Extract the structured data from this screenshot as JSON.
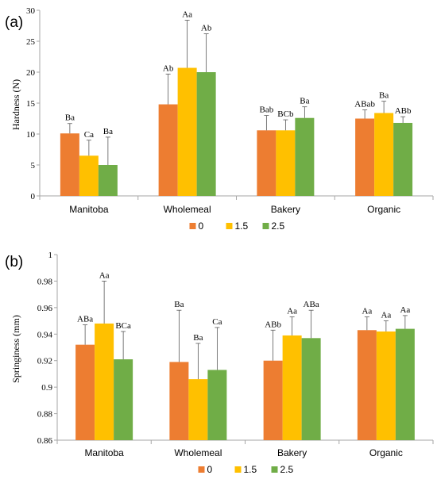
{
  "colors": {
    "s0": "#ED7D31",
    "s15": "#FFC000",
    "s25": "#70AD47",
    "axis": "#A6A6A6",
    "err": "#595959"
  },
  "chart_data": [
    {
      "type": "bar",
      "panel_label": "(a)",
      "ylabel": "Hardness (N)",
      "ylim": [
        0,
        30
      ],
      "yticks": [
        "0",
        "5",
        "10",
        "15",
        "20",
        "25",
        "30"
      ],
      "categories": [
        "Manitoba",
        "Wholemeal",
        "Bakery",
        "Organic"
      ],
      "series": [
        {
          "name": "0",
          "values": [
            10.1,
            14.8,
            10.6,
            12.5
          ],
          "errors": [
            1.6,
            4.9,
            2.4,
            1.4
          ],
          "labels": [
            "Ba",
            "Ab",
            "Bab",
            "ABab"
          ]
        },
        {
          "name": "1.5",
          "values": [
            6.5,
            20.7,
            10.6,
            13.4
          ],
          "errors": [
            2.5,
            7.7,
            1.7,
            1.9
          ],
          "labels": [
            "Ca",
            "Aa",
            "BCb",
            "Ba"
          ]
        },
        {
          "name": "2.5",
          "values": [
            5.0,
            20.0,
            12.6,
            11.8
          ],
          "errors": [
            4.5,
            6.2,
            1.8,
            1.0
          ],
          "labels": [
            "Ba",
            "Ab",
            "Ba",
            "ABb"
          ]
        }
      ],
      "legend": [
        "0",
        "1.5",
        "2.5"
      ]
    },
    {
      "type": "bar",
      "panel_label": "(b)",
      "ylabel": "Springiness (mm)",
      "ylim": [
        0.86,
        1.0
      ],
      "yticks": [
        "0.86",
        "0.88",
        "0.9",
        "0.92",
        "0.94",
        "0.96",
        "0.98",
        "1"
      ],
      "categories": [
        "Manitoba",
        "Wholemeal",
        "Bakery",
        "Organic"
      ],
      "series": [
        {
          "name": "0",
          "values": [
            0.932,
            0.919,
            0.92,
            0.943
          ],
          "errors": [
            0.015,
            0.039,
            0.023,
            0.01
          ],
          "labels": [
            "ABa",
            "Ba",
            "ABb",
            "Aa"
          ]
        },
        {
          "name": "1.5",
          "values": [
            0.948,
            0.906,
            0.939,
            0.942
          ],
          "errors": [
            0.032,
            0.027,
            0.014,
            0.008
          ],
          "labels": [
            "Aa",
            "Ba",
            "Aa",
            "Aa"
          ]
        },
        {
          "name": "2.5",
          "values": [
            0.921,
            0.913,
            0.937,
            0.944
          ],
          "errors": [
            0.021,
            0.032,
            0.021,
            0.01
          ],
          "labels": [
            "BCa",
            "Ca",
            "ABa",
            "Aa"
          ]
        }
      ],
      "legend": [
        "0",
        "1.5",
        "2.5"
      ]
    }
  ]
}
